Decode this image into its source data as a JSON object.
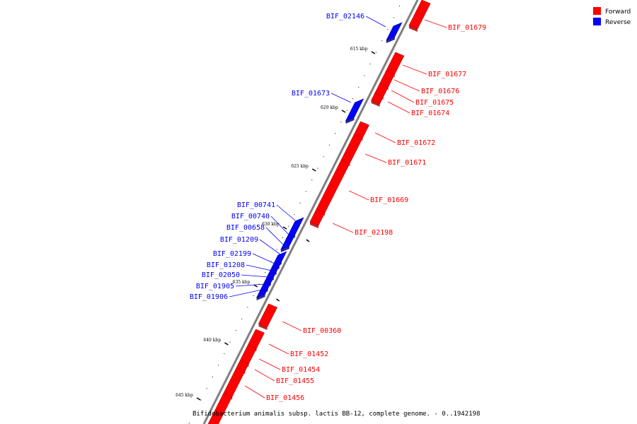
{
  "caption": "Bifidobacterium animalis subsp. lactis BB-12, complete genome. - 0..1942198",
  "legend": [
    {
      "label": "Forward",
      "color": "#ff0000"
    },
    {
      "label": "Reverse",
      "color": "#0000ff"
    }
  ],
  "colors": {
    "forward": "#ff0000",
    "forward_dark": "#b00000",
    "reverse": "#0000ff",
    "reverse_dark": "#00008b",
    "backbone": "#808080"
  },
  "ticks": [
    "615 kbp",
    "620 kbp",
    "625 kbp",
    "630 kbp",
    "635 kbp",
    "640 kbp",
    "645 kbp"
  ],
  "genes_forward": [
    "BIF_01679",
    "BIF_01677",
    "BIF_01676",
    "BIF_01675",
    "BIF_01674",
    "BIF_01672",
    "BIF_01671",
    "BIF_01669",
    "BIF_02198",
    "BIF_00360",
    "BIF_01452",
    "BIF_01454",
    "BIF_01455",
    "BIF_01456"
  ],
  "genes_reverse": [
    "BIF_02146",
    "BIF_01673",
    "BIF_00741",
    "BIF_00740",
    "BIF_00658",
    "BIF_01209",
    "BIF_02199",
    "BIF_01208",
    "BIF_02050",
    "BIF_01905",
    "BIF_01906"
  ]
}
